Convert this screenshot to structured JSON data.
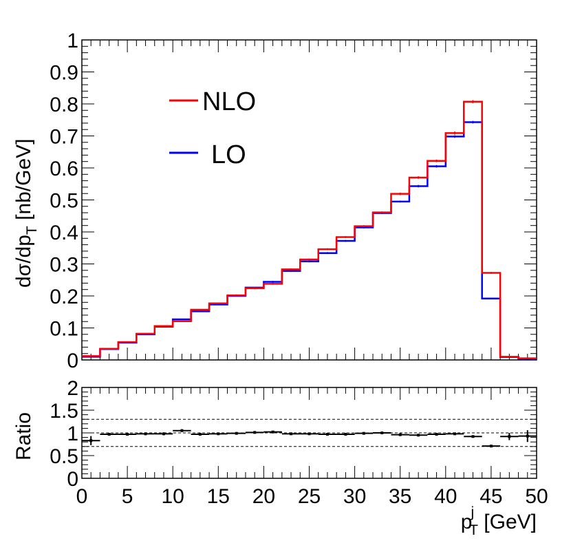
{
  "chart_data": [
    {
      "type": "line",
      "step": true,
      "x_edges": [
        0,
        2,
        4,
        6,
        8,
        10,
        12,
        14,
        16,
        18,
        20,
        22,
        24,
        26,
        28,
        30,
        32,
        34,
        36,
        38,
        40,
        42,
        44,
        46,
        48,
        50
      ],
      "series": [
        {
          "name": "NLO",
          "color": "#ff0000",
          "values": [
            0.012,
            0.035,
            0.056,
            0.082,
            0.106,
            0.121,
            0.157,
            0.177,
            0.202,
            0.224,
            0.238,
            0.283,
            0.314,
            0.346,
            0.384,
            0.418,
            0.461,
            0.519,
            0.57,
            0.622,
            0.709,
            0.807,
            0.272,
            0.01,
            0.005
          ],
          "errors": [
            0.002,
            0.002,
            0.002,
            0.002,
            0.002,
            0.002,
            0.002,
            0.002,
            0.003,
            0.003,
            0.003,
            0.003,
            0.003,
            0.003,
            0.003,
            0.003,
            0.003,
            0.004,
            0.004,
            0.004,
            0.005,
            0.005,
            0.003,
            0.002,
            0.001
          ]
        },
        {
          "name": "LO",
          "color": "#0000ff",
          "values": [
            0.01,
            0.034,
            0.054,
            0.08,
            0.104,
            0.127,
            0.152,
            0.173,
            0.2,
            0.226,
            0.244,
            0.278,
            0.308,
            0.334,
            0.372,
            0.414,
            0.459,
            0.495,
            0.543,
            0.605,
            0.698,
            0.743,
            0.192,
            0.009,
            0.004
          ],
          "errors": [
            0.001,
            0.001,
            0.002,
            0.002,
            0.002,
            0.002,
            0.002,
            0.002,
            0.002,
            0.002,
            0.003,
            0.003,
            0.003,
            0.003,
            0.003,
            0.003,
            0.003,
            0.003,
            0.004,
            0.004,
            0.004,
            0.004,
            0.002,
            0.001,
            0.001
          ]
        }
      ],
      "ylabel": "dσ/dp",
      "ylabel_subscript": "T",
      "ylabel_unit": " [nb/GeV]",
      "ylim": [
        0,
        1
      ],
      "yticks": [
        0,
        0.1,
        0.2,
        0.3,
        0.4,
        0.5,
        0.6,
        0.7,
        0.8,
        0.9,
        1
      ],
      "ytick_labels": [
        "0",
        "0.1",
        "0.2",
        "0.3",
        "0.4",
        "0.5",
        "0.6",
        "0.7",
        "0.8",
        "0.9",
        "1"
      ],
      "xlim": [
        0,
        50
      ],
      "legend": {
        "position": "top-left",
        "entries": [
          "NLO",
          "LO"
        ]
      }
    },
    {
      "type": "scatter",
      "x": [
        1,
        3,
        5,
        7,
        9,
        11,
        13,
        15,
        17,
        19,
        21,
        23,
        25,
        27,
        29,
        31,
        33,
        35,
        37,
        39,
        41,
        43,
        45,
        47,
        49
      ],
      "values": [
        0.83,
        0.97,
        0.97,
        0.98,
        0.98,
        1.05,
        0.97,
        0.98,
        0.99,
        1.01,
        1.02,
        0.98,
        0.98,
        0.97,
        0.97,
        0.99,
        1.0,
        0.96,
        0.95,
        0.97,
        0.98,
        0.92,
        0.71,
        0.92,
        0.93
      ],
      "errors": [
        0.1,
        0.03,
        0.03,
        0.03,
        0.03,
        0.03,
        0.02,
        0.02,
        0.02,
        0.02,
        0.02,
        0.02,
        0.02,
        0.02,
        0.02,
        0.02,
        0.02,
        0.02,
        0.02,
        0.02,
        0.02,
        0.02,
        0.02,
        0.08,
        0.13
      ],
      "ylabel": "Ratio",
      "ylim": [
        0,
        2
      ],
      "yticks": [
        0,
        0.5,
        1,
        1.5,
        2
      ],
      "ytick_labels": [
        "0",
        "0.5",
        "1",
        "1.5",
        "2"
      ],
      "reference_lines": [
        0.7,
        1.0,
        1.3
      ],
      "xlabel": "p",
      "xlabel_superscript": "j",
      "xlabel_subscript": "T",
      "xlabel_unit": " [GeV]",
      "xlim": [
        0,
        50
      ],
      "xticks": [
        0,
        5,
        10,
        15,
        20,
        25,
        30,
        35,
        40,
        45,
        50
      ],
      "xtick_labels": [
        "0",
        "5",
        "10",
        "15",
        "20",
        "25",
        "30",
        "35",
        "40",
        "45",
        "50"
      ]
    }
  ]
}
